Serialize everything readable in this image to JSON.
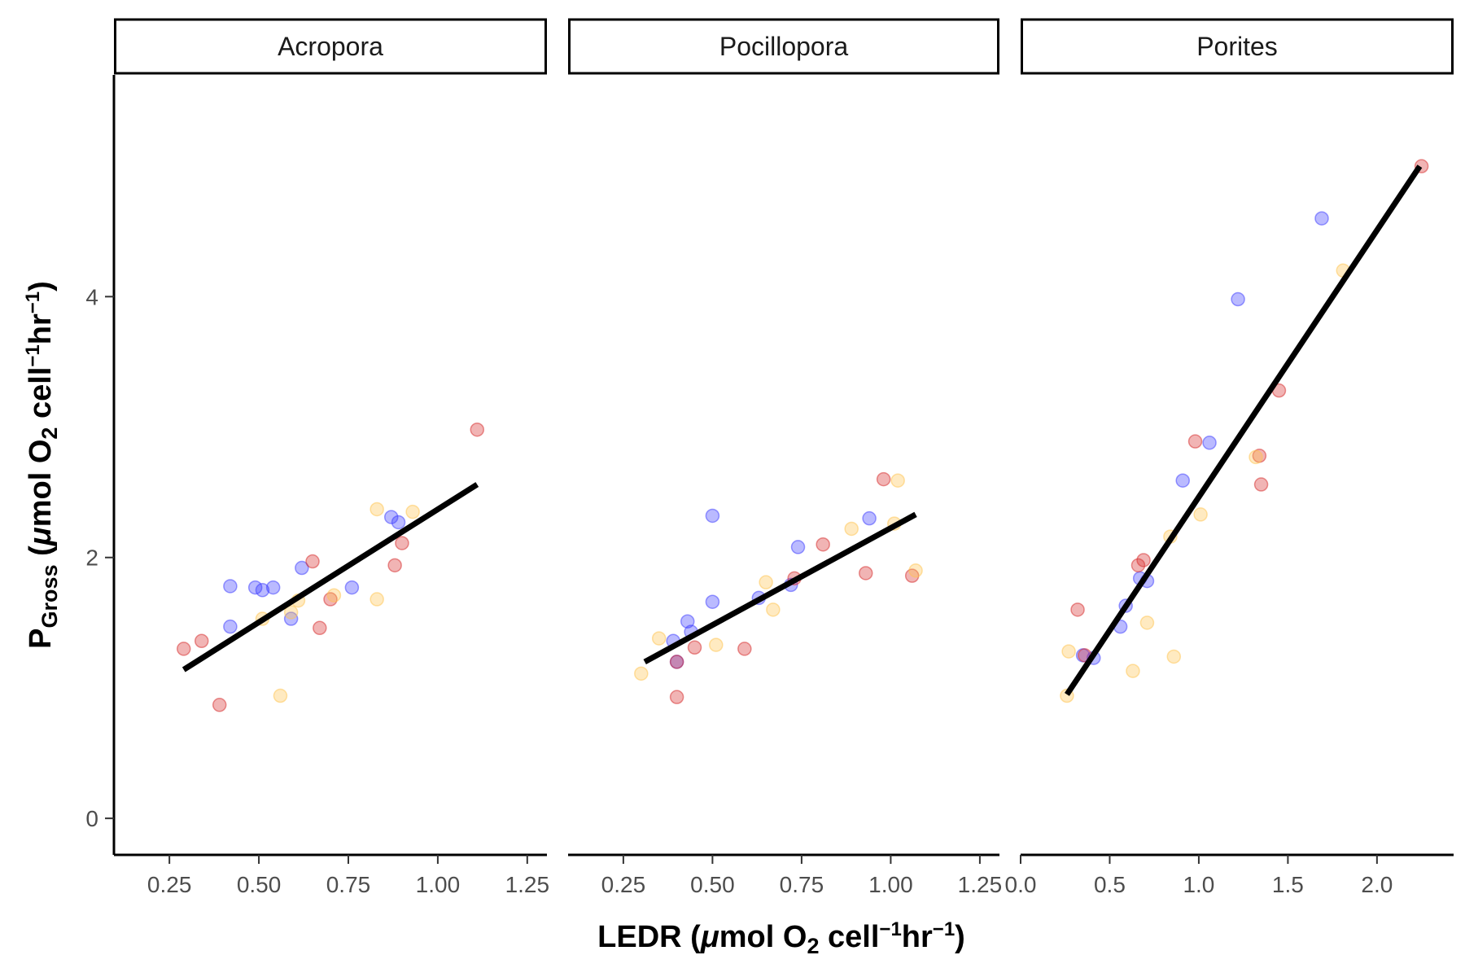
{
  "chart_data": {
    "type": "scatter",
    "xlabel": {
      "base": "LEDR (",
      "mu": "μ",
      "mid": "mol O",
      "sub2": "2",
      "cell": " cell",
      "sup1": "−1",
      "hr": "hr",
      "sup2": "−1",
      "close": ")"
    },
    "ylabel": {
      "p": "P",
      "gross": "Gross",
      "open": " (",
      "mu": "μ",
      "mid": "mol O",
      "sub2": "2",
      "cell": " cell",
      "sup1": "−1",
      "hr": "hr",
      "sup2": "−1",
      "close": ")"
    },
    "ylim": [
      -0.28,
      5.7
    ],
    "y_ticks": [
      0,
      2,
      4
    ],
    "grid": false,
    "legend": "none",
    "colors": {
      "blue": "#3a3aff",
      "red": "#d62728",
      "yellow": "#ffc34d",
      "line": "#000000"
    },
    "panels": [
      {
        "name": "Acropora",
        "xlim": [
          0.095,
          1.305
        ],
        "x_ticks": [
          0.25,
          0.5,
          0.75,
          1.0,
          1.25
        ],
        "x_tick_labels": [
          "0.25",
          "0.50",
          "0.75",
          "1.00",
          "1.25"
        ],
        "fit": {
          "x": [
            0.29,
            1.11
          ],
          "y": [
            1.14,
            2.56
          ]
        },
        "points": [
          {
            "x": 0.42,
            "y": 1.78,
            "c": "blue"
          },
          {
            "x": 0.42,
            "y": 1.47,
            "c": "blue"
          },
          {
            "x": 0.49,
            "y": 1.77,
            "c": "blue"
          },
          {
            "x": 0.51,
            "y": 1.75,
            "c": "blue"
          },
          {
            "x": 0.54,
            "y": 1.77,
            "c": "blue"
          },
          {
            "x": 0.59,
            "y": 1.53,
            "c": "blue"
          },
          {
            "x": 0.62,
            "y": 1.92,
            "c": "blue"
          },
          {
            "x": 0.76,
            "y": 1.77,
            "c": "blue"
          },
          {
            "x": 0.87,
            "y": 2.31,
            "c": "blue"
          },
          {
            "x": 0.89,
            "y": 2.27,
            "c": "blue"
          },
          {
            "x": 0.29,
            "y": 1.3,
            "c": "red"
          },
          {
            "x": 0.34,
            "y": 1.36,
            "c": "red"
          },
          {
            "x": 0.39,
            "y": 0.87,
            "c": "red"
          },
          {
            "x": 0.65,
            "y": 1.97,
            "c": "red"
          },
          {
            "x": 0.67,
            "y": 1.46,
            "c": "red"
          },
          {
            "x": 0.7,
            "y": 1.68,
            "c": "red"
          },
          {
            "x": 0.88,
            "y": 1.94,
            "c": "red"
          },
          {
            "x": 0.9,
            "y": 2.11,
            "c": "red"
          },
          {
            "x": 1.11,
            "y": 2.98,
            "c": "red"
          },
          {
            "x": 0.51,
            "y": 1.53,
            "c": "yellow"
          },
          {
            "x": 0.56,
            "y": 0.94,
            "c": "yellow"
          },
          {
            "x": 0.59,
            "y": 1.58,
            "c": "yellow"
          },
          {
            "x": 0.61,
            "y": 1.67,
            "c": "yellow"
          },
          {
            "x": 0.71,
            "y": 1.71,
            "c": "yellow"
          },
          {
            "x": 0.83,
            "y": 2.37,
            "c": "yellow"
          },
          {
            "x": 0.83,
            "y": 1.68,
            "c": "yellow"
          },
          {
            "x": 0.93,
            "y": 2.35,
            "c": "yellow"
          }
        ]
      },
      {
        "name": "Pocillopora",
        "xlim": [
          0.095,
          1.305
        ],
        "x_ticks": [
          0.25,
          0.5,
          0.75,
          1.0,
          1.25
        ],
        "x_tick_labels": [
          "0.25",
          "0.50",
          "0.75",
          "1.00",
          "1.25"
        ],
        "fit": {
          "x": [
            0.31,
            1.07
          ],
          "y": [
            1.2,
            2.33
          ]
        },
        "points": [
          {
            "x": 0.39,
            "y": 1.36,
            "c": "blue"
          },
          {
            "x": 0.4,
            "y": 1.2,
            "c": "blue"
          },
          {
            "x": 0.43,
            "y": 1.51,
            "c": "blue"
          },
          {
            "x": 0.44,
            "y": 1.43,
            "c": "blue"
          },
          {
            "x": 0.5,
            "y": 2.32,
            "c": "blue"
          },
          {
            "x": 0.5,
            "y": 1.66,
            "c": "blue"
          },
          {
            "x": 0.63,
            "y": 1.69,
            "c": "blue"
          },
          {
            "x": 0.72,
            "y": 1.79,
            "c": "blue"
          },
          {
            "x": 0.74,
            "y": 2.08,
            "c": "blue"
          },
          {
            "x": 0.94,
            "y": 2.3,
            "c": "blue"
          },
          {
            "x": 0.4,
            "y": 0.93,
            "c": "red"
          },
          {
            "x": 0.4,
            "y": 1.2,
            "c": "red"
          },
          {
            "x": 0.45,
            "y": 1.31,
            "c": "red"
          },
          {
            "x": 0.59,
            "y": 1.3,
            "c": "red"
          },
          {
            "x": 0.73,
            "y": 1.84,
            "c": "red"
          },
          {
            "x": 0.81,
            "y": 2.1,
            "c": "red"
          },
          {
            "x": 0.93,
            "y": 1.88,
            "c": "red"
          },
          {
            "x": 0.98,
            "y": 2.6,
            "c": "red"
          },
          {
            "x": 1.06,
            "y": 1.86,
            "c": "red"
          },
          {
            "x": 0.3,
            "y": 1.11,
            "c": "yellow"
          },
          {
            "x": 0.35,
            "y": 1.38,
            "c": "yellow"
          },
          {
            "x": 0.51,
            "y": 1.33,
            "c": "yellow"
          },
          {
            "x": 0.65,
            "y": 1.81,
            "c": "yellow"
          },
          {
            "x": 0.67,
            "y": 1.6,
            "c": "yellow"
          },
          {
            "x": 0.89,
            "y": 2.22,
            "c": "yellow"
          },
          {
            "x": 1.01,
            "y": 2.26,
            "c": "yellow"
          },
          {
            "x": 1.02,
            "y": 2.59,
            "c": "yellow"
          },
          {
            "x": 1.07,
            "y": 1.9,
            "c": "yellow"
          }
        ]
      },
      {
        "name": "Porites",
        "xlim": [
          0.0,
          2.43
        ],
        "x_ticks": [
          0.0,
          0.5,
          1.0,
          1.5,
          2.0
        ],
        "x_tick_labels": [
          "0.0",
          "0.5",
          "1.0",
          "1.5",
          "2.0"
        ],
        "fit": {
          "x": [
            0.26,
            2.24
          ],
          "y": [
            0.95,
            5.0
          ]
        },
        "points": [
          {
            "x": 0.35,
            "y": 1.25,
            "c": "blue"
          },
          {
            "x": 0.41,
            "y": 1.23,
            "c": "blue"
          },
          {
            "x": 0.56,
            "y": 1.47,
            "c": "blue"
          },
          {
            "x": 0.59,
            "y": 1.63,
            "c": "blue"
          },
          {
            "x": 0.67,
            "y": 1.84,
            "c": "blue"
          },
          {
            "x": 0.71,
            "y": 1.82,
            "c": "blue"
          },
          {
            "x": 0.91,
            "y": 2.59,
            "c": "blue"
          },
          {
            "x": 1.06,
            "y": 2.88,
            "c": "blue"
          },
          {
            "x": 1.22,
            "y": 3.98,
            "c": "blue"
          },
          {
            "x": 1.69,
            "y": 4.6,
            "c": "blue"
          },
          {
            "x": 0.32,
            "y": 1.6,
            "c": "red"
          },
          {
            "x": 0.36,
            "y": 1.25,
            "c": "red"
          },
          {
            "x": 0.66,
            "y": 1.94,
            "c": "red"
          },
          {
            "x": 0.69,
            "y": 1.98,
            "c": "red"
          },
          {
            "x": 0.98,
            "y": 2.89,
            "c": "red"
          },
          {
            "x": 1.34,
            "y": 2.78,
            "c": "red"
          },
          {
            "x": 1.35,
            "y": 2.56,
            "c": "red"
          },
          {
            "x": 1.45,
            "y": 3.28,
            "c": "red"
          },
          {
            "x": 2.25,
            "y": 5.0,
            "c": "red"
          },
          {
            "x": 0.26,
            "y": 0.94,
            "c": "yellow"
          },
          {
            "x": 0.27,
            "y": 1.28,
            "c": "yellow"
          },
          {
            "x": 0.63,
            "y": 1.13,
            "c": "yellow"
          },
          {
            "x": 0.71,
            "y": 1.5,
            "c": "yellow"
          },
          {
            "x": 0.84,
            "y": 2.16,
            "c": "yellow"
          },
          {
            "x": 0.86,
            "y": 1.24,
            "c": "yellow"
          },
          {
            "x": 1.01,
            "y": 2.33,
            "c": "yellow"
          },
          {
            "x": 1.32,
            "y": 2.77,
            "c": "yellow"
          },
          {
            "x": 1.81,
            "y": 4.2,
            "c": "yellow"
          }
        ]
      }
    ]
  }
}
